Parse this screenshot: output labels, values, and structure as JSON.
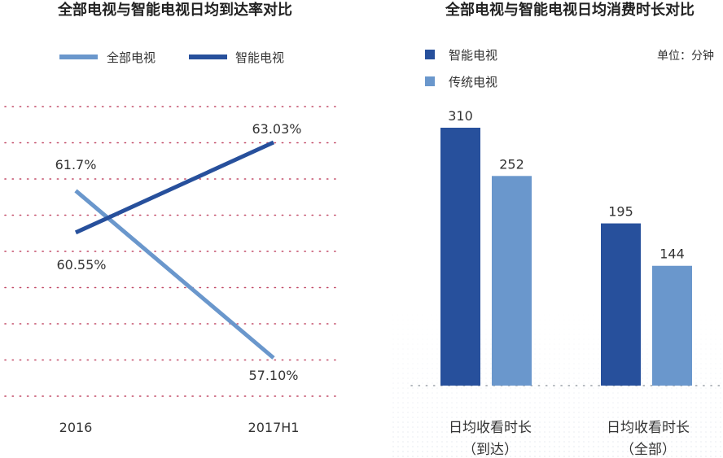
{
  "colors": {
    "smart": "#27509c",
    "traditional": "#6a97cc",
    "all": "#6a97cc",
    "grid": "#c24a67"
  },
  "chart_data": [
    {
      "type": "line",
      "title": "全部电视与智能电视日均到达率对比",
      "categories": [
        "2016",
        "2017H1"
      ],
      "series": [
        {
          "name": "全部电视",
          "values": [
            61.7,
            57.1
          ],
          "labels": [
            "61.7%",
            "57.10%"
          ]
        },
        {
          "name": "智能电视",
          "values": [
            60.55,
            63.03
          ],
          "labels": [
            "60.55%",
            "63.03%"
          ]
        }
      ],
      "ylim": [
        56,
        64
      ],
      "grid": true,
      "legend": "top"
    },
    {
      "type": "bar",
      "title": "全部电视与智能电视日均消费时长对比",
      "unit_label": "单位：分钟",
      "categories": [
        {
          "line1": "日均收看时长",
          "line2": "（到达）"
        },
        {
          "line1": "日均收看时长",
          "line2": "（全部）"
        }
      ],
      "series": [
        {
          "name": "智能电视",
          "values": [
            310,
            195
          ]
        },
        {
          "name": "传统电视",
          "values": [
            252,
            144
          ]
        }
      ],
      "ylim": [
        0,
        330
      ],
      "legend": "top-left"
    }
  ]
}
